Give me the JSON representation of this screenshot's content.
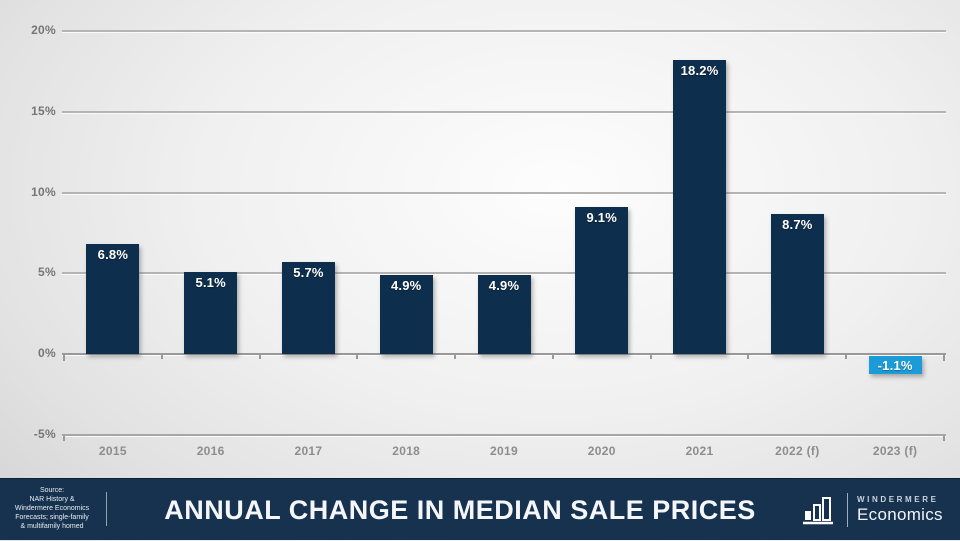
{
  "chart_data": {
    "type": "bar",
    "title": "ANNUAL CHANGE IN MEDIAN SALE PRICES",
    "categories": [
      "2015",
      "2016",
      "2017",
      "2018",
      "2019",
      "2020",
      "2021",
      "2022 (f)",
      "2023 (f)"
    ],
    "values": [
      6.8,
      5.1,
      5.7,
      4.9,
      4.9,
      9.1,
      18.2,
      8.7,
      -1.1
    ],
    "value_labels": [
      "6.8%",
      "5.1%",
      "5.7%",
      "4.9%",
      "4.9%",
      "9.1%",
      "18.2%",
      "8.7%",
      "-1.1%"
    ],
    "ylim": [
      -5,
      20
    ],
    "yticks": [
      {
        "value": 20,
        "label": "20%"
      },
      {
        "value": 15,
        "label": "15%"
      },
      {
        "value": 10,
        "label": "10%"
      },
      {
        "value": 5,
        "label": "5%"
      },
      {
        "value": 0,
        "label": "0%"
      },
      {
        "value": -5,
        "label": "-5%"
      }
    ],
    "grid": true,
    "legend": "none",
    "bar_color": "#0e2e4d",
    "negative_forecast_color": "#1b9cd8",
    "axis_label_color": "#8d8d8d"
  },
  "footer": {
    "source_lines": [
      "Source:",
      "NAR History &",
      "Windermere Economics",
      "Forecasts; single-family",
      "& multifamily homed"
    ],
    "title": "ANNUAL CHANGE IN MEDIAN SALE PRICES",
    "logo": {
      "icon": "bar-chart-icon",
      "brand_top": "WINDERMERE",
      "brand_bottom": "Economics"
    },
    "background_color": "#16324f"
  }
}
